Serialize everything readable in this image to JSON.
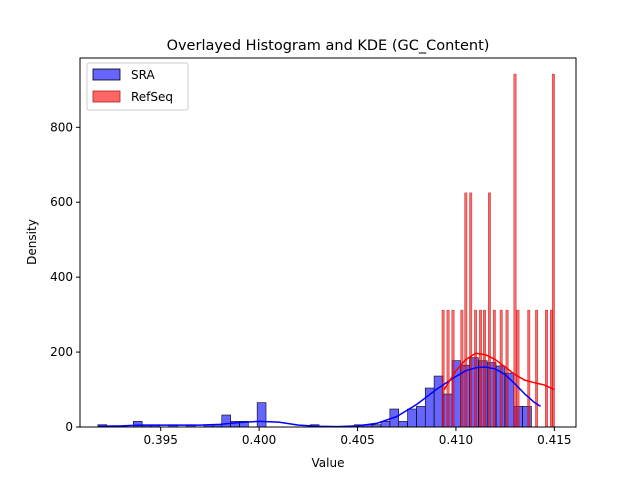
{
  "chart_data": {
    "type": "bar",
    "title": "Overlayed Histogram and KDE (GC_Content)",
    "xlabel": "Value",
    "ylabel": "Density",
    "xlim": [
      0.3909,
      0.4161
    ],
    "ylim": [
      0,
      985
    ],
    "xticks": [
      0.395,
      0.4,
      0.405,
      0.41,
      0.415
    ],
    "xtick_labels": [
      "0.395",
      "0.400",
      "0.405",
      "0.410",
      "0.415"
    ],
    "yticks": [
      0,
      200,
      400,
      600,
      800
    ],
    "ytick_labels": [
      "0",
      "200",
      "400",
      "600",
      "800"
    ],
    "grid": false,
    "legend_position": "upper-left",
    "series": [
      {
        "name": "SRA",
        "kind": "histogram",
        "color": "#0000ff",
        "alpha": 0.6,
        "edgecolor": "#000000",
        "bin_start": 0.39181,
        "bin_width": 0.0004495,
        "values": [
          6,
          0,
          0,
          0,
          15,
          6,
          6,
          0,
          6,
          0,
          6,
          0,
          6,
          6,
          32,
          15,
          15,
          0,
          65,
          0,
          0,
          0,
          0,
          0,
          6,
          0,
          0,
          0,
          0,
          6,
          6,
          6,
          15,
          48,
          15,
          48,
          55,
          104,
          136,
          88,
          177,
          165,
          185,
          177,
          172,
          163,
          144,
          55,
          55
        ],
        "kde": {
          "color": "#0000ff",
          "x": [
            0.3918,
            0.393,
            0.394,
            0.395,
            0.396,
            0.397,
            0.398,
            0.399,
            0.4,
            0.401,
            0.402,
            0.403,
            0.404,
            0.405,
            0.406,
            0.407,
            0.408,
            0.409,
            0.41,
            0.4105,
            0.411,
            0.4115,
            0.412,
            0.4125,
            0.413,
            0.4135,
            0.414,
            0.4143
          ],
          "y": [
            2,
            3,
            5,
            5,
            5,
            5,
            7,
            12,
            15,
            13,
            5,
            2,
            1,
            3,
            10,
            28,
            60,
            100,
            135,
            150,
            158,
            160,
            155,
            140,
            115,
            88,
            65,
            55
          ]
        }
      },
      {
        "name": "RefSeq",
        "kind": "histogram",
        "color": "#ff0000",
        "alpha": 0.6,
        "edgecolor": "#b22222",
        "bins": [
          {
            "x": 0.40935,
            "y": 312
          },
          {
            "x": 0.4096,
            "y": 312
          },
          {
            "x": 0.40985,
            "y": 312
          },
          {
            "x": 0.4103,
            "y": 312
          },
          {
            "x": 0.4105,
            "y": 625
          },
          {
            "x": 0.41075,
            "y": 625
          },
          {
            "x": 0.411,
            "y": 312
          },
          {
            "x": 0.41125,
            "y": 312
          },
          {
            "x": 0.41145,
            "y": 312
          },
          {
            "x": 0.4117,
            "y": 625
          },
          {
            "x": 0.41195,
            "y": 312
          },
          {
            "x": 0.4123,
            "y": 312
          },
          {
            "x": 0.4126,
            "y": 312
          },
          {
            "x": 0.413,
            "y": 942
          },
          {
            "x": 0.41315,
            "y": 312
          },
          {
            "x": 0.4137,
            "y": 312
          },
          {
            "x": 0.4141,
            "y": 312
          },
          {
            "x": 0.4146,
            "y": 312
          },
          {
            "x": 0.41485,
            "y": 312
          },
          {
            "x": 0.41495,
            "y": 942
          }
        ],
        "kde": {
          "color": "#ff0000",
          "x": [
            0.4094,
            0.41,
            0.4105,
            0.411,
            0.4115,
            0.412,
            0.4125,
            0.413,
            0.4135,
            0.414,
            0.4145,
            0.415
          ],
          "y": [
            100,
            150,
            180,
            197,
            193,
            180,
            160,
            140,
            125,
            118,
            112,
            100
          ]
        }
      }
    ]
  }
}
